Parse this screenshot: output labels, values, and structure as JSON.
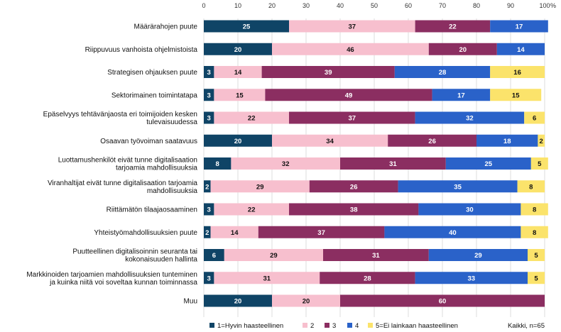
{
  "chart_data": {
    "type": "bar",
    "orientation": "horizontal",
    "stacked": true,
    "xlim": [
      0,
      100
    ],
    "x_ticks": [
      0,
      10,
      20,
      30,
      40,
      50,
      60,
      70,
      80,
      90,
      100
    ],
    "x_unit": "%",
    "grid": true,
    "legend_position": "bottom",
    "note": "Kaikki, n=65",
    "categories": [
      [
        "Määrärahojen puute"
      ],
      [
        "Riippuvuus vanhoista ohjelmistoista"
      ],
      [
        "Strategisen ohjauksen puute"
      ],
      [
        "Sektorimainen toimintatapa"
      ],
      [
        "Epäselvyys tehtävänjaosta eri toimijoiden kesken",
        "tulevaisuudessa"
      ],
      [
        "Osaavan työvoiman saatavuus"
      ],
      [
        "Luottamushenkilöt eivät tunne digitalisaation",
        "tarjoamia mahdollisuuksia"
      ],
      [
        "Viranhaltijat eivät tunne digitalisaation tarjoamia",
        "mahdollisuuksia"
      ],
      [
        "Riittämätön tilaajaosaaminen"
      ],
      [
        "Yhteistyömahdollisuuksien puute"
      ],
      [
        "Puutteellinen digitalisoinnin seuranta tai",
        "kokonaisuuden hallinta"
      ],
      [
        "Markkinoiden tarjoamien mahdollisuuksien tunteminen",
        "ja kuinka niitä voi soveltaa kunnan toiminnassa"
      ],
      [
        "Muu"
      ]
    ],
    "series": [
      {
        "name": "1=Hyvin haasteellinen",
        "color": "#0f4466",
        "label_color": "#ffffff",
        "values": [
          25,
          20,
          3,
          3,
          3,
          20,
          8,
          2,
          3,
          2,
          6,
          3,
          20
        ]
      },
      {
        "name": "2",
        "color": "#f7bfce",
        "label_color": "#111111",
        "values": [
          37,
          46,
          14,
          15,
          22,
          34,
          32,
          29,
          22,
          14,
          29,
          31,
          20
        ]
      },
      {
        "name": "3",
        "color": "#8b2e61",
        "label_color": "#ffffff",
        "values": [
          22,
          20,
          39,
          49,
          37,
          26,
          31,
          26,
          38,
          37,
          31,
          28,
          60
        ]
      },
      {
        "name": "4",
        "color": "#2a62c9",
        "label_color": "#ffffff",
        "values": [
          17,
          14,
          28,
          17,
          32,
          18,
          25,
          35,
          30,
          40,
          29,
          33,
          0
        ]
      },
      {
        "name": "5=Ei lainkaan haasteellinen",
        "color": "#fbe36b",
        "label_color": "#111111",
        "values": [
          0,
          0,
          16,
          15,
          6,
          2,
          5,
          8,
          8,
          8,
          5,
          5,
          0
        ]
      }
    ]
  }
}
